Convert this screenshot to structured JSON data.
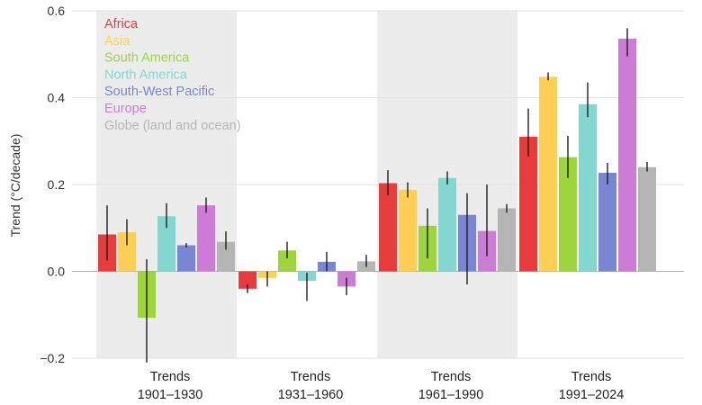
{
  "chart_data": {
    "type": "bar",
    "title": "",
    "xlabel": "",
    "ylabel": "Trend (°C/decade)",
    "ylim": [
      -0.2,
      0.6
    ],
    "yticks": [
      "0.6",
      "0.4",
      "0.2",
      "0.0",
      "−0.2"
    ],
    "ytick_values": [
      0.6,
      0.4,
      0.2,
      0.0,
      -0.2
    ],
    "grid": true,
    "legend_position": "top-left",
    "categories": [
      {
        "line1": "Trends",
        "line2": "1901–1930",
        "shaded": true
      },
      {
        "line1": "Trends",
        "line2": "1931–1960",
        "shaded": false
      },
      {
        "line1": "Trends",
        "line2": "1961–1990",
        "shaded": true
      },
      {
        "line1": "Trends",
        "line2": "1991–2024",
        "shaded": false
      }
    ],
    "series": [
      {
        "name": "Africa",
        "color": "#e83c3c",
        "values": [
          0.085,
          -0.04,
          0.203,
          0.31
        ],
        "err_low": [
          0.025,
          -0.05,
          0.175,
          0.265
        ],
        "err_high": [
          0.152,
          -0.03,
          0.233,
          0.375
        ]
      },
      {
        "name": "Asia",
        "color": "#fdd055",
        "values": [
          0.09,
          -0.015,
          0.188,
          0.448
        ],
        "err_low": [
          0.06,
          -0.035,
          0.17,
          0.44
        ],
        "err_high": [
          0.12,
          0.0,
          0.205,
          0.458
        ]
      },
      {
        "name": "South America",
        "color": "#9ed43c",
        "values": [
          -0.107,
          0.048,
          0.105,
          0.263
        ],
        "err_low": [
          -0.21,
          0.03,
          0.03,
          0.215
        ],
        "err_high": [
          0.028,
          0.068,
          0.145,
          0.312
        ]
      },
      {
        "name": "North America",
        "color": "#84d6d0",
        "values": [
          0.127,
          -0.022,
          0.215,
          0.385
        ],
        "err_low": [
          0.1,
          -0.068,
          0.2,
          0.355
        ],
        "err_high": [
          0.157,
          -0.003,
          0.23,
          0.435
        ]
      },
      {
        "name": "South-West Pacific",
        "color": "#7a85d4",
        "values": [
          0.06,
          0.022,
          0.13,
          0.227
        ],
        "err_low": [
          0.055,
          0.0,
          -0.03,
          0.2
        ],
        "err_high": [
          0.065,
          0.045,
          0.18,
          0.25
        ]
      },
      {
        "name": "Europe",
        "color": "#cc7bd6",
        "values": [
          0.152,
          -0.035,
          0.093,
          0.536
        ],
        "err_low": [
          0.135,
          -0.055,
          0.035,
          0.495
        ],
        "err_high": [
          0.17,
          -0.015,
          0.2,
          0.56
        ]
      },
      {
        "name": "Globe (land and ocean)",
        "color": "#b5b5b5",
        "values": [
          0.068,
          0.023,
          0.145,
          0.24
        ],
        "err_low": [
          0.05,
          0.01,
          0.135,
          0.23
        ],
        "err_high": [
          0.092,
          0.038,
          0.155,
          0.252
        ]
      }
    ]
  }
}
